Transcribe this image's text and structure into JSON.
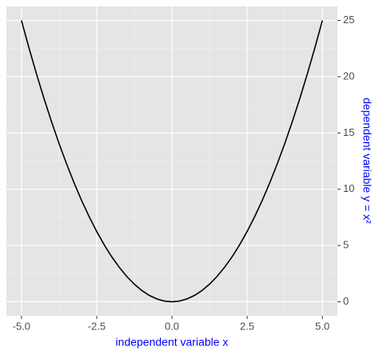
{
  "chart_data": {
    "type": "line",
    "xlabel": "independent variable x",
    "ylabel": "dependent variable y = x²",
    "label_color": "#0000ff",
    "y_axis_position": "right",
    "x": [
      -5,
      -4.75,
      -4.5,
      -4.25,
      -4,
      -3.75,
      -3.5,
      -3.25,
      -3,
      -2.75,
      -2.5,
      -2.25,
      -2,
      -1.75,
      -1.5,
      -1.25,
      -1,
      -0.75,
      -0.5,
      -0.25,
      0,
      0.25,
      0.5,
      0.75,
      1,
      1.25,
      1.5,
      1.75,
      2,
      2.25,
      2.5,
      2.75,
      3,
      3.25,
      3.5,
      3.75,
      4,
      4.25,
      4.5,
      4.75,
      5
    ],
    "series": [
      {
        "color": "#000000",
        "values": [
          25,
          22.5625,
          20.25,
          18.0625,
          16,
          14.0625,
          12.25,
          10.5625,
          9,
          7.5625,
          6.25,
          5.0625,
          4,
          3.0625,
          2.25,
          1.5625,
          1,
          0.5625,
          0.25,
          0.0625,
          0,
          0.0625,
          0.25,
          0.5625,
          1,
          1.5625,
          2.25,
          3.0625,
          4,
          5.0625,
          6.25,
          7.5625,
          9,
          10.5625,
          12.25,
          14.0625,
          16,
          18.0625,
          20.25,
          22.5625,
          25
        ]
      }
    ],
    "xlim": [
      -5.5,
      5.5
    ],
    "xticks": [
      {
        "value": -5,
        "label": "-5.0"
      },
      -2.5,
      {
        "value": 0,
        "label": "0.0"
      },
      2.5,
      {
        "value": 5,
        "label": "5.0"
      }
    ],
    "ylim": [
      -1.25,
      26.25
    ],
    "yticks": [
      0,
      5,
      10,
      15,
      20,
      25
    ],
    "grid": true
  }
}
